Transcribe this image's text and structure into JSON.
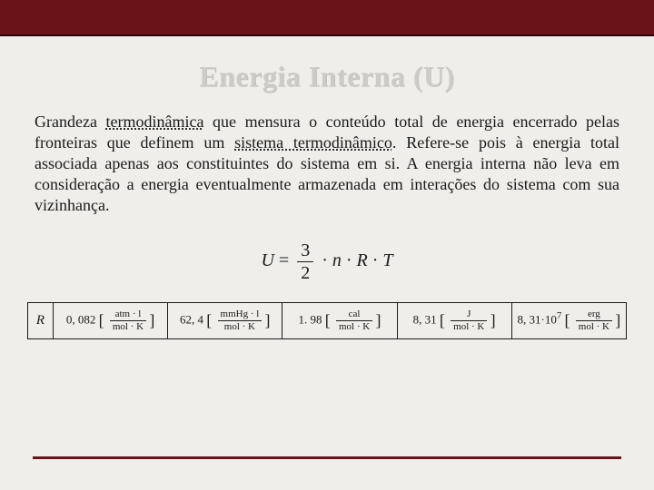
{
  "colors": {
    "header_bar": "#6b1418",
    "header_border": "#2a0507",
    "background": "#efeeea",
    "title_color": "#cdcbc6",
    "text_color": "#1a1a1a",
    "rule_color": "#6b1418"
  },
  "title": "Energia Interna (U)",
  "paragraph": {
    "p1_pre": "Grandeza ",
    "p1_link1": "termodinâmica",
    "p1_mid1": " que mensura o conteúdo total de energia encerrado pelas fronteiras que definem um ",
    "p1_link2": "sistema termodinâmico",
    "p1_post": ". Refere-se pois à energia total associada apenas aos constituintes do sistema em si. A energia interna não leva em consideração a energia eventualmente armazenada em interações do sistema com sua vizinhança."
  },
  "formula": {
    "lhs": "U",
    "eq": " = ",
    "frac_num": "3",
    "frac_den": "2",
    "dot": " · ",
    "n": "n",
    "R": "R",
    "T": "T"
  },
  "r_table": {
    "label": "R",
    "cells": [
      {
        "value": "0, 082",
        "unit_num": "atm · l",
        "unit_den": "mol · K"
      },
      {
        "value": "62, 4",
        "unit_num": "mmHg · l",
        "unit_den": "mol · K"
      },
      {
        "value": "1. 98",
        "unit_num": "cal",
        "unit_den": "mol · K"
      },
      {
        "value": "8, 31",
        "unit_num": "J",
        "unit_den": "mol · K"
      },
      {
        "value": "8, 31·10",
        "exp": "7",
        "unit_num": "erg",
        "unit_den": "mol · K"
      }
    ]
  }
}
